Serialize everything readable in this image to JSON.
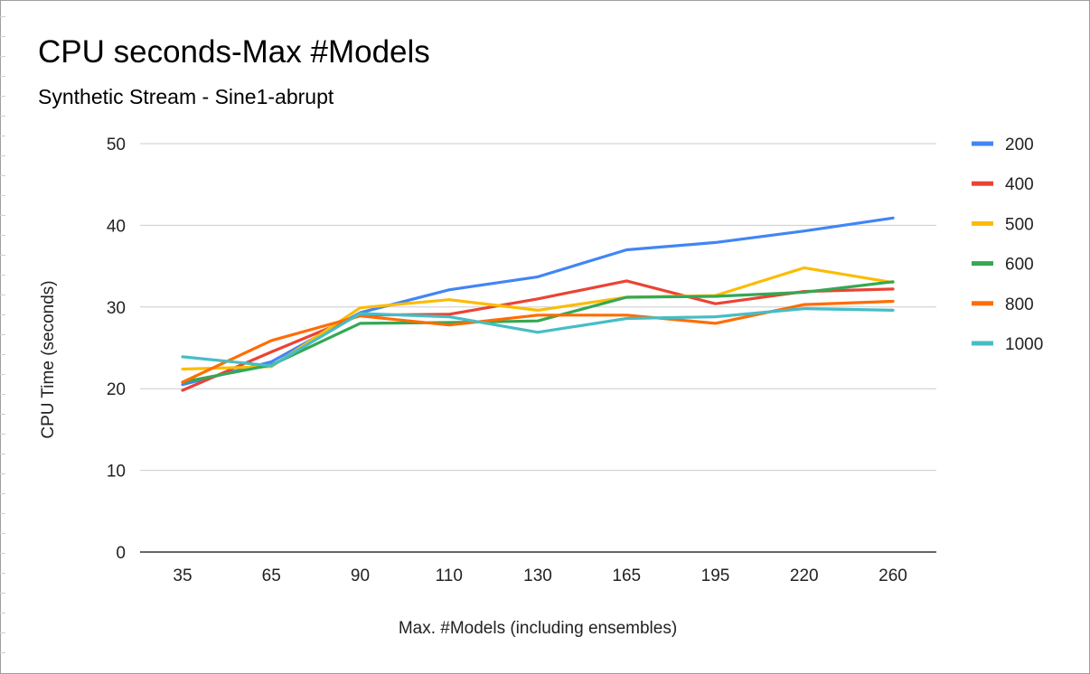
{
  "chart_data": {
    "type": "line",
    "title": "CPU seconds-Max #Models",
    "subtitle": "Synthetic Stream - Sine1-abrupt",
    "xlabel": "Max. #Models (including ensembles)",
    "ylabel": "CPU Time (seconds)",
    "categories": [
      "35",
      "65",
      "90",
      "110",
      "130",
      "165",
      "195",
      "220",
      "260"
    ],
    "ylim": [
      0,
      50
    ],
    "yticks": [
      "0",
      "10",
      "20",
      "30",
      "40",
      "50"
    ],
    "grid": true,
    "legend_position": "right",
    "series": [
      {
        "name": "200",
        "color": "#4285f4",
        "values": [
          20.5,
          23.3,
          29.3,
          32.1,
          33.7,
          37.0,
          37.9,
          39.3,
          40.9
        ]
      },
      {
        "name": "400",
        "color": "#ea4335",
        "values": [
          19.8,
          24.5,
          29.0,
          29.1,
          31.0,
          33.2,
          30.4,
          31.9,
          32.2
        ]
      },
      {
        "name": "500",
        "color": "#fbbc04",
        "values": [
          22.4,
          22.7,
          29.9,
          30.9,
          29.6,
          31.2,
          31.4,
          34.8,
          33.0
        ]
      },
      {
        "name": "600",
        "color": "#34a853",
        "values": [
          20.8,
          22.9,
          28.0,
          28.1,
          28.3,
          31.2,
          31.3,
          31.8,
          33.1
        ]
      },
      {
        "name": "800",
        "color": "#ff6d01",
        "values": [
          20.8,
          25.9,
          28.9,
          27.8,
          29.0,
          29.0,
          28.0,
          30.3,
          30.7
        ]
      },
      {
        "name": "1000",
        "color": "#46bdc6",
        "values": [
          23.9,
          22.8,
          29.2,
          28.8,
          26.9,
          28.6,
          28.8,
          29.8,
          29.6
        ]
      }
    ]
  }
}
